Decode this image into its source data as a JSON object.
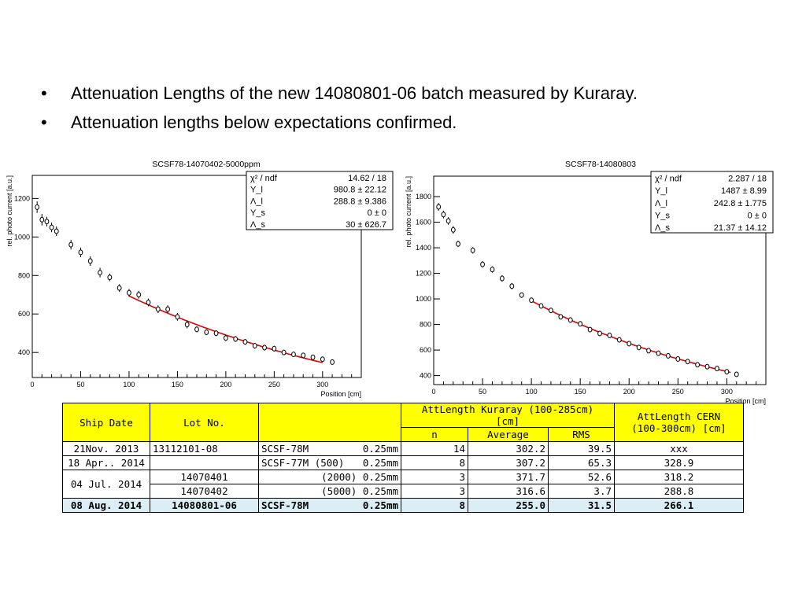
{
  "bullets": [
    "Attenuation Lengths of the new 14080801-06 batch measured by Kuraray.",
    "Attenuation lengths below expectations confirmed."
  ],
  "bullet_symbol": "•",
  "chart_data": [
    {
      "type": "scatter",
      "title": "SCSF78-14070402-5000ppm",
      "xlabel": "Position [cm]",
      "ylabel": "rel. photo current [a.u.]",
      "xlim": [
        0,
        340
      ],
      "ylim": [
        270,
        1320
      ],
      "xticks": [
        0,
        50,
        100,
        150,
        200,
        250,
        300
      ],
      "yticks": [
        400,
        600,
        800,
        1000,
        1200
      ],
      "points": {
        "x": [
          5,
          10,
          15,
          20,
          25,
          40,
          50,
          60,
          70,
          80,
          90,
          100,
          110,
          120,
          130,
          140,
          150,
          160,
          170,
          180,
          190,
          200,
          210,
          220,
          230,
          240,
          250,
          260,
          270,
          280,
          290,
          300,
          310
        ],
        "y": [
          1155,
          1090,
          1080,
          1050,
          1030,
          960,
          920,
          875,
          815,
          790,
          735,
          710,
          700,
          660,
          625,
          625,
          585,
          545,
          520,
          505,
          500,
          475,
          470,
          455,
          435,
          425,
          420,
          400,
          390,
          385,
          375,
          365,
          350
        ],
        "err": [
          30,
          30,
          25,
          25,
          25,
          25,
          25,
          25,
          25,
          20,
          20,
          20,
          20,
          20,
          20,
          20,
          20,
          20,
          15,
          15,
          15,
          15,
          15,
          15,
          15,
          15,
          15,
          12,
          12,
          12,
          12,
          12,
          10
        ]
      },
      "fit": {
        "x_range": [
          100,
          300
        ],
        "color": "#e00000",
        "Y_l": 980.8,
        "Lambda_l": 288.8,
        "Y_s": 0,
        "Lambda_s": 30
      },
      "stats_box": [
        {
          "label": "χ² / ndf",
          "value": "14.62 / 18"
        },
        {
          "label": "Y_l",
          "value": "980.8 ± 22.12"
        },
        {
          "label": "Λ_l",
          "value": "288.8 ± 9.386"
        },
        {
          "label": "Y_s",
          "value": "0 ±    0"
        },
        {
          "label": "Λ_s",
          "value": "30 ± 626.7"
        }
      ]
    },
    {
      "type": "scatter",
      "title": "SCSF78-14080803",
      "xlabel": "Position [cm]",
      "ylabel": "rel. photo current [a.u.]",
      "xlim": [
        0,
        340
      ],
      "ylim": [
        330,
        1960
      ],
      "xticks": [
        0,
        50,
        100,
        150,
        200,
        250,
        300
      ],
      "yticks": [
        400,
        600,
        800,
        1000,
        1200,
        1400,
        1600,
        1800
      ],
      "points": {
        "x": [
          5,
          10,
          15,
          20,
          25,
          40,
          50,
          60,
          70,
          80,
          90,
          100,
          110,
          120,
          130,
          140,
          150,
          160,
          170,
          180,
          190,
          200,
          210,
          220,
          230,
          240,
          250,
          260,
          270,
          280,
          290,
          300,
          310
        ],
        "y": [
          1720,
          1660,
          1610,
          1540,
          1430,
          1380,
          1270,
          1230,
          1160,
          1100,
          1030,
          990,
          945,
          910,
          860,
          835,
          805,
          760,
          730,
          715,
          680,
          650,
          620,
          595,
          575,
          555,
          530,
          510,
          485,
          470,
          455,
          430,
          410
        ],
        "err": [
          30,
          30,
          30,
          30,
          25,
          25,
          25,
          25,
          25,
          25,
          20,
          20,
          20,
          20,
          20,
          20,
          20,
          20,
          15,
          15,
          15,
          15,
          15,
          15,
          15,
          15,
          15,
          12,
          12,
          12,
          12,
          12,
          10
        ]
      },
      "fit": {
        "x_range": [
          100,
          305
        ],
        "color": "#e00000",
        "Y_l": 1487,
        "Lambda_l": 242.8,
        "Y_s": 0,
        "Lambda_s": 21.37
      },
      "stats_box": [
        {
          "label": "χ² / ndf",
          "value": "2.287 / 18"
        },
        {
          "label": "Y_l",
          "value": "1487 ±  8.99"
        },
        {
          "label": "Λ_l",
          "value": "242.8 ± 1.775"
        },
        {
          "label": "Y_s",
          "value": "0 ±    0"
        },
        {
          "label": "Λ_s",
          "value": "21.37 ± 14.12"
        }
      ]
    }
  ],
  "table": {
    "header": {
      "ship_date": "Ship Date",
      "lot_no": "Lot No.",
      "kuraray": "AttLength Kuraray (100-285cm)",
      "kuraray_unit": "[cm]",
      "cern": "AttLength CERN",
      "cern_unit": "(100-300cm) [cm]",
      "n": "n",
      "average": "Average",
      "rms": "RMS"
    },
    "rows": {
      "r1": {
        "date": "21Nov. 2013",
        "lot": "13112101-08",
        "fiber": "SCSF-78M",
        "diam": "0.25mm",
        "n": "14",
        "avg": "302.2",
        "rms": "39.5",
        "cern": "xxx"
      },
      "r2": {
        "date": "18 Apr.. 2014",
        "lot": "",
        "fiber": "SCSF-77M (500)",
        "diam": "0.25mm",
        "n": "8",
        "avg": "307.2",
        "rms": "65.3",
        "cern": "328.9"
      },
      "r3": {
        "date": "04 Jul. 2014",
        "lot": "14070401",
        "fiber": "(2000) 0.25mm",
        "n": "3",
        "avg": "371.7",
        "rms": "52.6",
        "cern": "318.2"
      },
      "r4": {
        "lot": "14070402",
        "fiber": "(5000) 0.25mm",
        "n": "3",
        "avg": "316.6",
        "rms": "3.7",
        "cern": "288.8"
      },
      "r5": {
        "date": "08 Aug. 2014",
        "lot": "14080801-06",
        "fiber": "SCSF-78M",
        "diam": "0.25mm",
        "n": "8",
        "avg": "255.0",
        "rms": "31.5",
        "cern": "266.1"
      }
    },
    "colors": {
      "header_bg": "#ffff00",
      "highlight_bg": "#dbeef3"
    }
  }
}
